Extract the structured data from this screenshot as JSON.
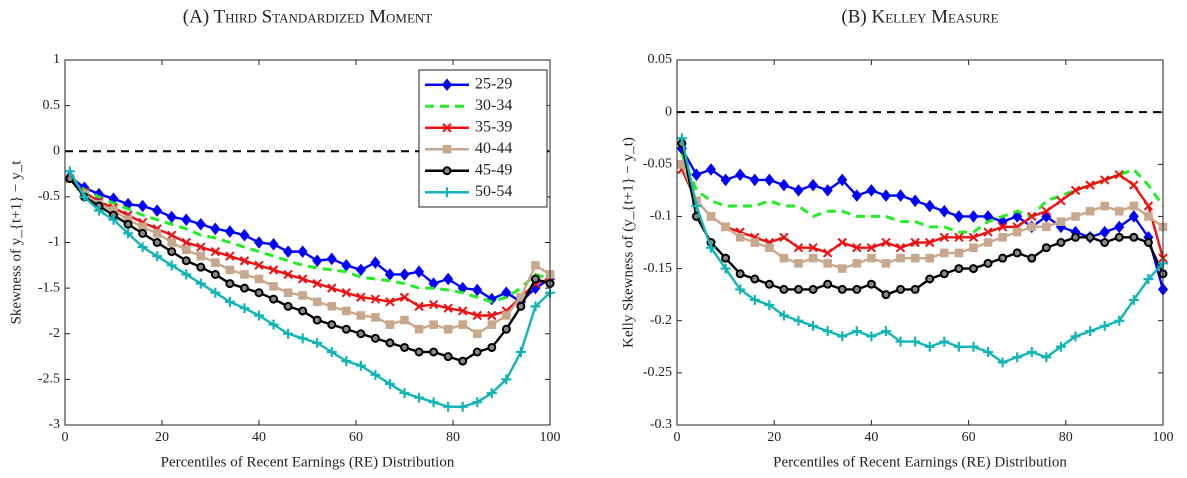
{
  "chart_data": [
    {
      "type": "line",
      "title": "(A) Third Standardized Moment",
      "xlabel": "Percentiles of Recent Earnings (RE) Distribution",
      "ylabel": "Skewness of y_{t+1} − y_t",
      "x": [
        1,
        4,
        7,
        10,
        13,
        16,
        19,
        22,
        25,
        28,
        31,
        34,
        37,
        40,
        43,
        46,
        49,
        52,
        55,
        58,
        61,
        64,
        67,
        70,
        73,
        76,
        79,
        82,
        85,
        88,
        91,
        94,
        97,
        100
      ],
      "xlim": [
        0,
        100
      ],
      "xticks": [
        0,
        20,
        40,
        60,
        80,
        100
      ],
      "ylim": [
        -3,
        1
      ],
      "yticks": [
        1,
        0.5,
        0,
        -0.5,
        -1,
        -1.5,
        -2,
        -2.5,
        -3
      ],
      "hline": 0,
      "legend": "upper right",
      "series": [
        {
          "name": "25-29",
          "color": "#0000ff",
          "marker": "diamond",
          "values": [
            -0.28,
            -0.4,
            -0.47,
            -0.52,
            -0.58,
            -0.6,
            -0.65,
            -0.72,
            -0.75,
            -0.8,
            -0.85,
            -0.88,
            -0.92,
            -1.0,
            -1.02,
            -1.1,
            -1.1,
            -1.2,
            -1.18,
            -1.25,
            -1.3,
            -1.22,
            -1.35,
            -1.35,
            -1.32,
            -1.45,
            -1.4,
            -1.5,
            -1.52,
            -1.62,
            -1.55,
            -1.65,
            -1.5,
            -1.4
          ]
        },
        {
          "name": "30-34",
          "color": "#22ee22",
          "marker": "dash",
          "values": [
            -0.3,
            -0.42,
            -0.5,
            -0.57,
            -0.63,
            -0.7,
            -0.75,
            -0.8,
            -0.85,
            -0.92,
            -0.95,
            -1.0,
            -1.05,
            -1.1,
            -1.15,
            -1.2,
            -1.25,
            -1.28,
            -1.3,
            -1.32,
            -1.38,
            -1.4,
            -1.42,
            -1.45,
            -1.5,
            -1.5,
            -1.52,
            -1.55,
            -1.6,
            -1.65,
            -1.6,
            -1.5,
            -1.35,
            -1.4
          ]
        },
        {
          "name": "35-39",
          "color": "#ee1111",
          "marker": "x",
          "values": [
            -0.3,
            -0.45,
            -0.55,
            -0.62,
            -0.7,
            -0.78,
            -0.85,
            -0.92,
            -1.0,
            -1.05,
            -1.1,
            -1.15,
            -1.2,
            -1.25,
            -1.3,
            -1.35,
            -1.4,
            -1.45,
            -1.5,
            -1.55,
            -1.6,
            -1.62,
            -1.65,
            -1.6,
            -1.7,
            -1.68,
            -1.72,
            -1.75,
            -1.8,
            -1.8,
            -1.75,
            -1.6,
            -1.45,
            -1.4
          ]
        },
        {
          "name": "40-44",
          "color": "#c8a88c",
          "marker": "square",
          "values": [
            -0.3,
            -0.47,
            -0.58,
            -0.65,
            -0.75,
            -0.83,
            -0.9,
            -1.0,
            -1.08,
            -1.15,
            -1.22,
            -1.3,
            -1.35,
            -1.4,
            -1.48,
            -1.55,
            -1.58,
            -1.65,
            -1.7,
            -1.75,
            -1.8,
            -1.82,
            -1.9,
            -1.85,
            -1.95,
            -1.9,
            -1.95,
            -1.9,
            -2.0,
            -1.9,
            -1.8,
            -1.6,
            -1.25,
            -1.35
          ]
        },
        {
          "name": "45-49",
          "color": "#000000",
          "marker": "circle",
          "values": [
            -0.3,
            -0.5,
            -0.6,
            -0.7,
            -0.8,
            -0.9,
            -1.0,
            -1.1,
            -1.2,
            -1.27,
            -1.35,
            -1.45,
            -1.5,
            -1.55,
            -1.62,
            -1.7,
            -1.75,
            -1.85,
            -1.9,
            -1.95,
            -2.0,
            -2.05,
            -2.1,
            -2.15,
            -2.2,
            -2.2,
            -2.25,
            -2.3,
            -2.2,
            -2.15,
            -1.95,
            -1.7,
            -1.4,
            -1.45
          ]
        },
        {
          "name": "50-54",
          "color": "#12b5b5",
          "marker": "plus",
          "values": [
            -0.22,
            -0.5,
            -0.65,
            -0.75,
            -0.9,
            -1.05,
            -1.15,
            -1.25,
            -1.35,
            -1.45,
            -1.55,
            -1.65,
            -1.72,
            -1.8,
            -1.9,
            -2.0,
            -2.05,
            -2.1,
            -2.2,
            -2.3,
            -2.35,
            -2.45,
            -2.55,
            -2.65,
            -2.7,
            -2.75,
            -2.8,
            -2.8,
            -2.75,
            -2.65,
            -2.5,
            -2.2,
            -1.7,
            -1.55
          ]
        }
      ]
    },
    {
      "type": "line",
      "title": "(B) Kelley Measure",
      "xlabel": "Percentiles of Recent Earnings (RE) Distribution",
      "ylabel": "Kelly Skewness of (y_{t+1} − y_t)",
      "x": [
        1,
        4,
        7,
        10,
        13,
        16,
        19,
        22,
        25,
        28,
        31,
        34,
        37,
        40,
        43,
        46,
        49,
        52,
        55,
        58,
        61,
        64,
        67,
        70,
        73,
        76,
        79,
        82,
        85,
        88,
        91,
        94,
        97,
        100
      ],
      "xlim": [
        0,
        100
      ],
      "xticks": [
        0,
        20,
        40,
        60,
        80,
        100
      ],
      "ylim": [
        -0.3,
        0.05
      ],
      "yticks": [
        0.05,
        0,
        -0.05,
        -0.1,
        -0.15,
        -0.2,
        -0.25,
        -0.3
      ],
      "hline": 0,
      "series": [
        {
          "color": "#0000ff",
          "marker": "diamond",
          "values": [
            -0.035,
            -0.06,
            -0.055,
            -0.065,
            -0.06,
            -0.065,
            -0.065,
            -0.07,
            -0.075,
            -0.07,
            -0.075,
            -0.065,
            -0.08,
            -0.075,
            -0.08,
            -0.08,
            -0.085,
            -0.09,
            -0.095,
            -0.1,
            -0.1,
            -0.1,
            -0.105,
            -0.1,
            -0.11,
            -0.1,
            -0.11,
            -0.115,
            -0.12,
            -0.115,
            -0.11,
            -0.1,
            -0.12,
            -0.17
          ]
        },
        {
          "color": "#22ee22",
          "marker": "dash",
          "values": [
            -0.04,
            -0.075,
            -0.085,
            -0.09,
            -0.09,
            -0.09,
            -0.085,
            -0.09,
            -0.09,
            -0.1,
            -0.095,
            -0.095,
            -0.1,
            -0.1,
            -0.1,
            -0.105,
            -0.105,
            -0.11,
            -0.11,
            -0.115,
            -0.115,
            -0.105,
            -0.1,
            -0.095,
            -0.1,
            -0.085,
            -0.08,
            -0.075,
            -0.07,
            -0.065,
            -0.06,
            -0.055,
            -0.07,
            -0.09
          ]
        },
        {
          "color": "#ee1111",
          "marker": "x",
          "values": [
            -0.055,
            -0.085,
            -0.1,
            -0.11,
            -0.115,
            -0.12,
            -0.125,
            -0.12,
            -0.13,
            -0.13,
            -0.135,
            -0.125,
            -0.13,
            -0.13,
            -0.125,
            -0.13,
            -0.125,
            -0.125,
            -0.12,
            -0.12,
            -0.12,
            -0.115,
            -0.11,
            -0.11,
            -0.1,
            -0.095,
            -0.085,
            -0.075,
            -0.07,
            -0.065,
            -0.06,
            -0.07,
            -0.09,
            -0.14
          ]
        },
        {
          "color": "#c8a88c",
          "marker": "square",
          "values": [
            -0.05,
            -0.085,
            -0.1,
            -0.11,
            -0.12,
            -0.125,
            -0.13,
            -0.14,
            -0.145,
            -0.14,
            -0.145,
            -0.15,
            -0.145,
            -0.14,
            -0.145,
            -0.14,
            -0.14,
            -0.14,
            -0.135,
            -0.135,
            -0.13,
            -0.125,
            -0.12,
            -0.115,
            -0.11,
            -0.11,
            -0.105,
            -0.1,
            -0.095,
            -0.09,
            -0.095,
            -0.09,
            -0.1,
            -0.11
          ]
        },
        {
          "color": "#000000",
          "marker": "circle",
          "values": [
            -0.03,
            -0.1,
            -0.125,
            -0.14,
            -0.155,
            -0.16,
            -0.165,
            -0.17,
            -0.17,
            -0.17,
            -0.165,
            -0.17,
            -0.17,
            -0.165,
            -0.175,
            -0.17,
            -0.17,
            -0.16,
            -0.155,
            -0.15,
            -0.15,
            -0.145,
            -0.14,
            -0.135,
            -0.14,
            -0.13,
            -0.125,
            -0.12,
            -0.12,
            -0.125,
            -0.12,
            -0.12,
            -0.125,
            -0.155
          ]
        },
        {
          "color": "#12b5b5",
          "marker": "plus",
          "values": [
            -0.025,
            -0.09,
            -0.13,
            -0.15,
            -0.17,
            -0.18,
            -0.185,
            -0.195,
            -0.2,
            -0.205,
            -0.21,
            -0.215,
            -0.21,
            -0.215,
            -0.21,
            -0.22,
            -0.22,
            -0.225,
            -0.22,
            -0.225,
            -0.225,
            -0.23,
            -0.24,
            -0.235,
            -0.23,
            -0.235,
            -0.225,
            -0.215,
            -0.21,
            -0.205,
            -0.2,
            -0.18,
            -0.16,
            -0.145
          ]
        }
      ]
    }
  ]
}
